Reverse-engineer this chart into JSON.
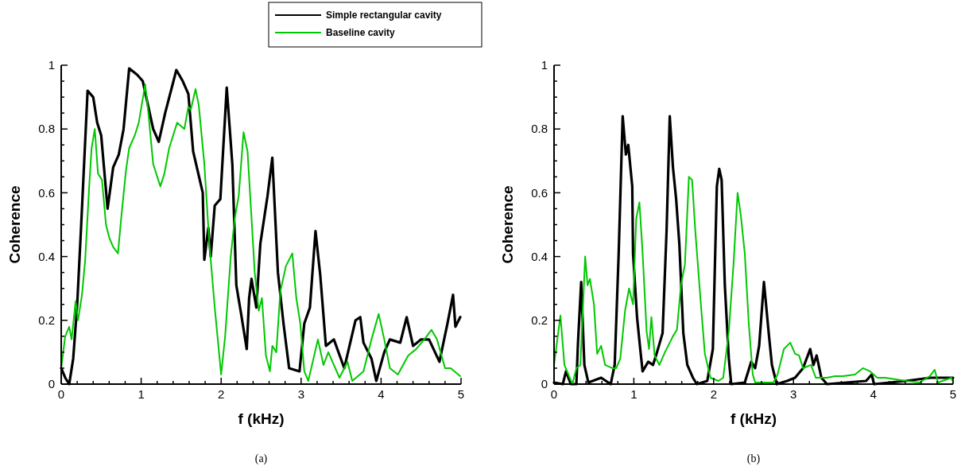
{
  "chart_data": [
    {
      "type": "line",
      "xlabel": "f (kHz)",
      "ylabel": "Coherence",
      "annotations": [
        "(a)"
      ],
      "xlim": [
        0,
        5
      ],
      "ylim": [
        0,
        1
      ],
      "xticks": [
        0,
        {
          "value": 0.2,
          "label": null
        },
        {
          "value": 0.4,
          "label": null
        },
        {
          "value": 0.6,
          "label": null
        },
        {
          "value": 0.8,
          "label": null
        },
        1,
        {
          "value": 1.2,
          "label": null
        },
        {
          "value": 1.4,
          "label": null
        },
        {
          "value": 1.6,
          "label": null
        },
        {
          "value": 1.8,
          "label": null
        },
        2,
        {
          "value": 2.2,
          "label": null
        },
        {
          "value": 2.4,
          "label": null
        },
        {
          "value": 2.6,
          "label": null
        },
        {
          "value": 2.8,
          "label": null
        },
        3,
        {
          "value": 3.2,
          "label": null
        },
        {
          "value": 3.4,
          "label": null
        },
        {
          "value": 3.6,
          "label": null
        },
        {
          "value": 3.8,
          "label": null
        },
        4,
        {
          "value": 4.2,
          "label": null
        },
        {
          "value": 4.4,
          "label": null
        },
        {
          "value": 4.6,
          "label": null
        },
        {
          "value": 4.8,
          "label": null
        },
        5
      ],
      "yticks": [
        0,
        {
          "value": 0.05,
          "label": null
        },
        {
          "value": 0.1,
          "label": null
        },
        {
          "value": 0.15,
          "label": null
        },
        0.2,
        {
          "value": 0.25,
          "label": null
        },
        {
          "value": 0.3,
          "label": null
        },
        {
          "value": 0.35,
          "label": null
        },
        0.4,
        {
          "value": 0.45,
          "label": null
        },
        {
          "value": 0.5,
          "label": null
        },
        {
          "value": 0.55,
          "label": null
        },
        0.6,
        {
          "value": 0.65,
          "label": null
        },
        {
          "value": 0.7,
          "label": null
        },
        {
          "value": 0.75,
          "label": null
        },
        0.8,
        {
          "value": 0.85,
          "label": null
        },
        {
          "value": 0.9,
          "label": null
        },
        {
          "value": 0.95,
          "label": null
        },
        1
      ],
      "legend": "top right",
      "marker": "none",
      "line_style": "solid",
      "series": [
        {
          "name": "Simple rectangular cavity",
          "color": "#000000",
          "x": [
            0,
            0.05,
            0.1,
            0.15,
            0.2,
            0.25,
            0.33,
            0.4,
            0.45,
            0.5,
            0.58,
            0.65,
            0.72,
            0.78,
            0.85,
            0.95,
            1.02,
            1.15,
            1.22,
            1.3,
            1.44,
            1.52,
            1.59,
            1.65,
            1.77,
            1.79,
            1.84,
            1.87,
            1.92,
            1.99,
            2.07,
            2.14,
            2.19,
            2.25,
            2.32,
            2.35,
            2.38,
            2.44,
            2.49,
            2.58,
            2.64,
            2.71,
            2.78,
            2.85,
            2.98,
            3.04,
            3.11,
            3.18,
            3.24,
            3.31,
            3.41,
            3.54,
            3.68,
            3.74,
            3.78,
            3.88,
            3.94,
            4.04,
            4.11,
            4.24,
            4.32,
            4.4,
            4.5,
            4.6,
            4.73,
            4.83,
            4.9,
            4.93,
            4.99
          ],
          "values": [
            0.05,
            0.02,
            0,
            0.08,
            0.25,
            0.5,
            0.92,
            0.9,
            0.82,
            0.78,
            0.55,
            0.68,
            0.72,
            0.8,
            0.99,
            0.97,
            0.95,
            0.8,
            0.76,
            0.85,
            0.985,
            0.95,
            0.91,
            0.73,
            0.6,
            0.39,
            0.49,
            0.4,
            0.56,
            0.58,
            0.93,
            0.69,
            0.31,
            0.22,
            0.11,
            0.27,
            0.33,
            0.24,
            0.44,
            0.59,
            0.71,
            0.35,
            0.19,
            0.05,
            0.04,
            0.19,
            0.24,
            0.48,
            0.34,
            0.12,
            0.14,
            0.05,
            0.2,
            0.21,
            0.13,
            0.08,
            0.01,
            0.1,
            0.14,
            0.13,
            0.21,
            0.12,
            0.14,
            0.14,
            0.07,
            0.19,
            0.28,
            0.18,
            0.21
          ]
        },
        {
          "name": "Baseline cavity",
          "color": "#00c800",
          "x": [
            0,
            0.05,
            0.1,
            0.13,
            0.18,
            0.21,
            0.26,
            0.3,
            0.35,
            0.38,
            0.42,
            0.46,
            0.51,
            0.56,
            0.6,
            0.65,
            0.71,
            0.75,
            0.81,
            0.85,
            0.92,
            0.97,
            1.05,
            1.09,
            1.15,
            1.24,
            1.29,
            1.35,
            1.45,
            1.54,
            1.59,
            1.62,
            1.68,
            1.72,
            1.79,
            1.85,
            1.92,
            2,
            2.05,
            2.12,
            2.17,
            2.22,
            2.28,
            2.33,
            2.38,
            2.42,
            2.47,
            2.51,
            2.56,
            2.61,
            2.64,
            2.69,
            2.74,
            2.81,
            2.89,
            2.94,
            2.99,
            3.04,
            3.09,
            3.21,
            3.28,
            3.34,
            3.48,
            3.58,
            3.64,
            3.78,
            3.88,
            3.97,
            4.04,
            4.11,
            4.21,
            4.34,
            4.44,
            4.54,
            4.63,
            4.7,
            4.8,
            4.87,
            4.99
          ],
          "values": [
            0.05,
            0.15,
            0.18,
            0.14,
            0.26,
            0.2,
            0.28,
            0.39,
            0.62,
            0.74,
            0.8,
            0.66,
            0.64,
            0.5,
            0.46,
            0.43,
            0.41,
            0.52,
            0.67,
            0.74,
            0.78,
            0.82,
            0.94,
            0.85,
            0.69,
            0.62,
            0.66,
            0.74,
            0.82,
            0.8,
            0.87,
            0.86,
            0.925,
            0.875,
            0.69,
            0.45,
            0.24,
            0.03,
            0.15,
            0.4,
            0.52,
            0.59,
            0.79,
            0.73,
            0.52,
            0.35,
            0.23,
            0.27,
            0.09,
            0.04,
            0.12,
            0.1,
            0.29,
            0.37,
            0.41,
            0.27,
            0.19,
            0.04,
            0.01,
            0.14,
            0.06,
            0.1,
            0.02,
            0.07,
            0.01,
            0.04,
            0.14,
            0.22,
            0.14,
            0.05,
            0.03,
            0.09,
            0.11,
            0.14,
            0.17,
            0.14,
            0.05,
            0.05,
            0.025
          ]
        }
      ]
    },
    {
      "type": "line",
      "xlabel": "f (kHz)",
      "ylabel": "Coherence",
      "annotations": [
        "(b)"
      ],
      "xlim": [
        0,
        5
      ],
      "ylim": [
        0,
        1
      ],
      "xticks": [
        0,
        {
          "value": 0.2,
          "label": null
        },
        {
          "value": 0.4,
          "label": null
        },
        {
          "value": 0.6,
          "label": null
        },
        {
          "value": 0.8,
          "label": null
        },
        1,
        {
          "value": 1.2,
          "label": null
        },
        {
          "value": 1.4,
          "label": null
        },
        {
          "value": 1.6,
          "label": null
        },
        {
          "value": 1.8,
          "label": null
        },
        2,
        {
          "value": 2.2,
          "label": null
        },
        {
          "value": 2.4,
          "label": null
        },
        {
          "value": 2.6,
          "label": null
        },
        {
          "value": 2.8,
          "label": null
        },
        3,
        {
          "value": 3.2,
          "label": null
        },
        {
          "value": 3.4,
          "label": null
        },
        {
          "value": 3.6,
          "label": null
        },
        {
          "value": 3.8,
          "label": null
        },
        4,
        {
          "value": 4.2,
          "label": null
        },
        {
          "value": 4.4,
          "label": null
        },
        {
          "value": 4.6,
          "label": null
        },
        {
          "value": 4.8,
          "label": null
        },
        5
      ],
      "yticks": [
        0,
        {
          "value": 0.05,
          "label": null
        },
        {
          "value": 0.1,
          "label": null
        },
        {
          "value": 0.15,
          "label": null
        },
        0.2,
        {
          "value": 0.25,
          "label": null
        },
        {
          "value": 0.3,
          "label": null
        },
        {
          "value": 0.35,
          "label": null
        },
        0.4,
        {
          "value": 0.45,
          "label": null
        },
        {
          "value": 0.5,
          "label": null
        },
        {
          "value": 0.55,
          "label": null
        },
        0.6,
        {
          "value": 0.65,
          "label": null
        },
        {
          "value": 0.7,
          "label": null
        },
        {
          "value": 0.75,
          "label": null
        },
        0.8,
        {
          "value": 0.85,
          "label": null
        },
        {
          "value": 0.9,
          "label": null
        },
        {
          "value": 0.95,
          "label": null
        },
        1
      ],
      "marker": "none",
      "line_style": "solid",
      "series": [
        {
          "color": "#000000",
          "x": [
            0,
            0.11,
            0.15,
            0.21,
            0.28,
            0.3,
            0.34,
            0.38,
            0.43,
            0.59,
            0.71,
            0.76,
            0.81,
            0.86,
            0.9,
            0.93,
            0.98,
            0.99,
            1.04,
            1.08,
            1.11,
            1.18,
            1.24,
            1.29,
            1.36,
            1.41,
            1.45,
            1.49,
            1.53,
            1.57,
            1.62,
            1.67,
            1.74,
            1.79,
            1.92,
            1.99,
            2.04,
            2.07,
            2.1,
            2.14,
            2.19,
            2.22,
            2.39,
            2.47,
            2.52,
            2.57,
            2.63,
            2.69,
            2.73,
            2.79,
            2.92,
            3.02,
            3.12,
            3.21,
            3.25,
            3.29,
            3.35,
            3.42,
            3.91,
            3.98,
            4.01,
            4.41,
            4.71,
            5
          ],
          "values": [
            0.005,
            0,
            0.04,
            0,
            0,
            0.13,
            0.32,
            0.06,
            0.005,
            0.02,
            0,
            0.06,
            0.41,
            0.84,
            0.72,
            0.75,
            0.62,
            0.41,
            0.21,
            0.11,
            0.04,
            0.07,
            0.06,
            0.1,
            0.16,
            0.48,
            0.84,
            0.68,
            0.58,
            0.44,
            0.16,
            0.06,
            0.02,
            0,
            0.01,
            0.11,
            0.62,
            0.675,
            0.64,
            0.31,
            0.08,
            0,
            0.005,
            0.07,
            0.05,
            0.12,
            0.32,
            0.16,
            0.06,
            0,
            0.01,
            0.02,
            0.05,
            0.11,
            0.06,
            0.09,
            0.02,
            0,
            0.01,
            0.03,
            0,
            0.01,
            0.02,
            0.02
          ]
        },
        {
          "color": "#00c800",
          "x": [
            0,
            0.08,
            0.13,
            0.23,
            0.28,
            0.33,
            0.39,
            0.42,
            0.45,
            0.5,
            0.54,
            0.59,
            0.64,
            0.73,
            0.78,
            0.83,
            0.89,
            0.94,
            0.99,
            1.03,
            1.07,
            1.11,
            1.16,
            1.19,
            1.22,
            1.26,
            1.32,
            1.39,
            1.49,
            1.54,
            1.59,
            1.64,
            1.69,
            1.73,
            1.77,
            1.84,
            1.89,
            1.96,
            2.06,
            2.12,
            2.19,
            2.25,
            2.3,
            2.34,
            2.39,
            2.44,
            2.49,
            2.52,
            2.75,
            2.8,
            2.88,
            2.96,
            3.02,
            3.07,
            3.12,
            3.22,
            3.28,
            3.42,
            3.52,
            3.62,
            3.77,
            3.87,
            3.96,
            4.05,
            4.15,
            4.41,
            4.58,
            4.71,
            4.77,
            4.81,
            4.98,
            5
          ],
          "values": [
            0.06,
            0.215,
            0.06,
            0,
            0.05,
            0.06,
            0.4,
            0.31,
            0.33,
            0.25,
            0.095,
            0.12,
            0.06,
            0.05,
            0.05,
            0.08,
            0.23,
            0.3,
            0.25,
            0.52,
            0.57,
            0.41,
            0.165,
            0.11,
            0.21,
            0.09,
            0.06,
            0.1,
            0.15,
            0.17,
            0.31,
            0.375,
            0.65,
            0.64,
            0.48,
            0.25,
            0.095,
            0.02,
            0.01,
            0.02,
            0.165,
            0.38,
            0.6,
            0.53,
            0.41,
            0.19,
            0.03,
            0.005,
            0.005,
            0.03,
            0.11,
            0.13,
            0.095,
            0.09,
            0.05,
            0.06,
            0.02,
            0.02,
            0.025,
            0.025,
            0.03,
            0.05,
            0.04,
            0.02,
            0.02,
            0.01,
            0.005,
            0.025,
            0.045,
            0.005,
            0.02,
            0.005
          ]
        }
      ]
    }
  ]
}
